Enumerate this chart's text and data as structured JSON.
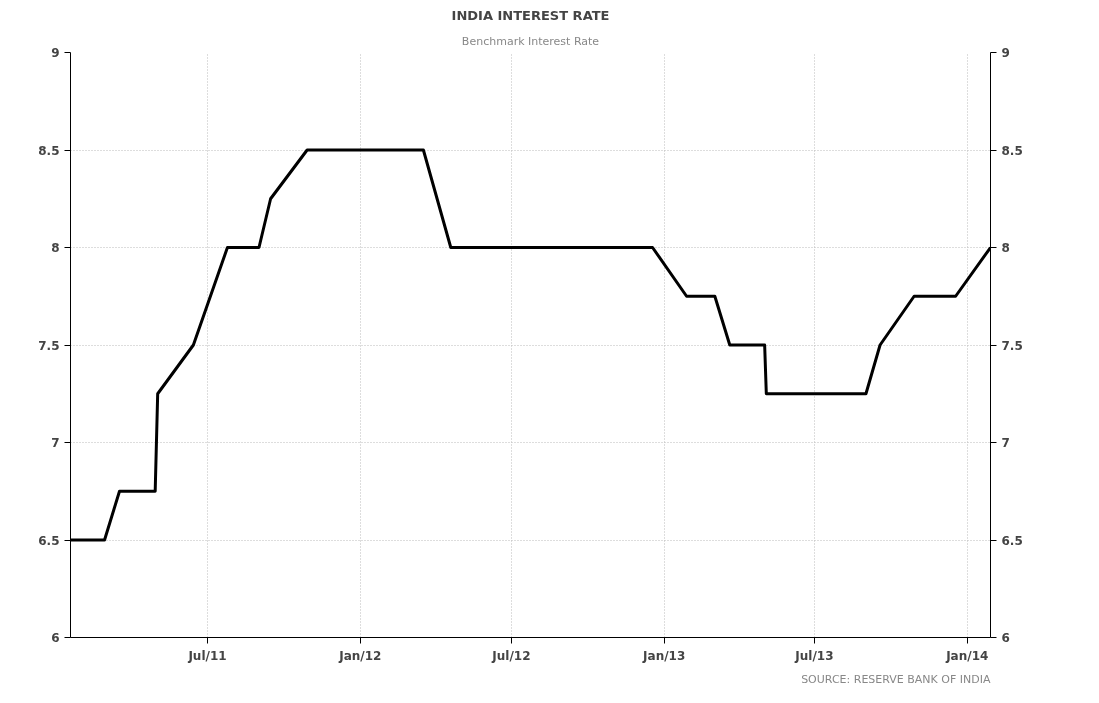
{
  "chart_data": {
    "type": "line",
    "title": "INDIA INTEREST RATE",
    "subtitle": "Benchmark Interest Rate",
    "x": [
      "2011-01-17",
      "2011-02-27",
      "2011-03-17",
      "2011-04-29",
      "2011-05-02",
      "2011-06-14",
      "2011-07-25",
      "2011-09-01",
      "2011-09-15",
      "2011-10-29",
      "2012-03-17",
      "2012-04-19",
      "2012-12-18",
      "2013-01-28",
      "2013-03-03",
      "2013-03-21",
      "2013-05-02",
      "2013-05-04",
      "2013-09-01",
      "2013-09-18",
      "2013-10-29",
      "2013-12-18",
      "2014-01-29"
    ],
    "series": [
      {
        "color": "#000000",
        "values": [
          6.5,
          6.5,
          6.75,
          6.75,
          7.25,
          7.5,
          8.0,
          8.0,
          8.25,
          8.5,
          8.5,
          8.0,
          8.0,
          7.75,
          7.75,
          7.5,
          7.5,
          7.25,
          7.25,
          7.5,
          7.75,
          7.75,
          8.0
        ]
      }
    ],
    "xlim": [
      "2011-01-17",
      "2014-01-29"
    ],
    "xticks": [
      {
        "value": "2011-07-01",
        "label": "Jul/11"
      },
      {
        "value": "2012-01-01",
        "label": "Jan/12"
      },
      {
        "value": "2012-07-01",
        "label": "Jul/12"
      },
      {
        "value": "2013-01-01",
        "label": "Jan/13"
      },
      {
        "value": "2013-07-01",
        "label": "Jul/13"
      },
      {
        "value": "2014-01-01",
        "label": "Jan/14"
      }
    ],
    "ylim": [
      6,
      9
    ],
    "yticks": [
      6,
      6.5,
      7,
      7.5,
      8,
      8.5,
      9
    ],
    "y2lim": [
      6,
      9
    ],
    "y2ticks": [
      6,
      6.5,
      7,
      7.5,
      8,
      8.5,
      9
    ],
    "grid": true,
    "marker": "none",
    "line_style": "solid",
    "annotations": [
      "SOURCE: RESERVE BANK OF INDIA"
    ]
  }
}
